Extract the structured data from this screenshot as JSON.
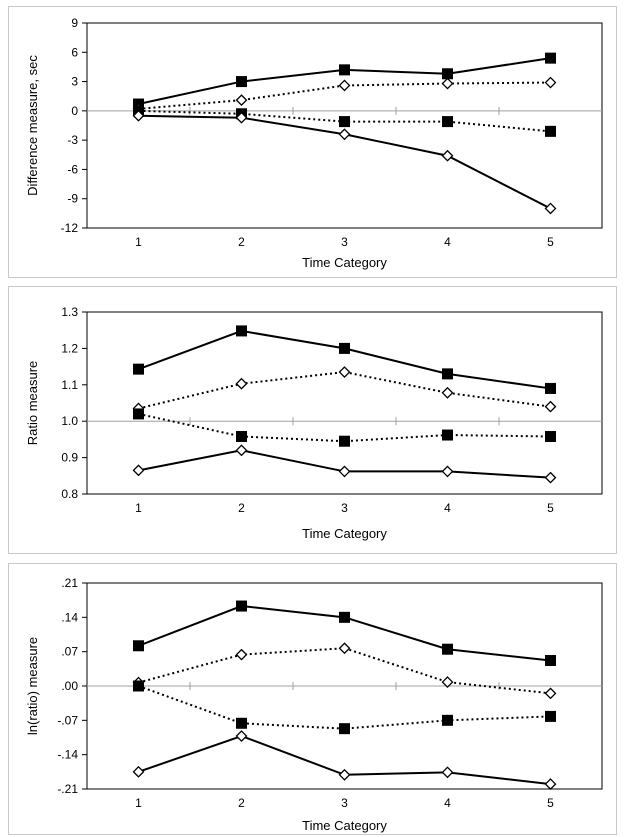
{
  "chart_data": [
    {
      "type": "line",
      "title": "",
      "xlabel": "Time Category",
      "ylabel": "Difference measure, sec",
      "categories": [
        "1",
        "2",
        "3",
        "4",
        "5"
      ],
      "ylim": [
        -12,
        9
      ],
      "yticks": [
        "9",
        "6",
        "3",
        "0",
        "-3",
        "-6",
        "-9",
        "-12"
      ],
      "ytick_values": [
        9,
        6,
        3,
        0,
        -3,
        -6,
        -9,
        -12
      ],
      "reference_line": 0,
      "series": [
        {
          "marker": "square",
          "line": "solid",
          "values": [
            0.7,
            3.0,
            4.2,
            3.8,
            5.4
          ]
        },
        {
          "marker": "diamond",
          "line": "dotted",
          "values": [
            0.2,
            1.1,
            2.6,
            2.8,
            2.9
          ]
        },
        {
          "marker": "square",
          "line": "dotted",
          "values": [
            0.0,
            -0.3,
            -1.1,
            -1.1,
            -2.1
          ]
        },
        {
          "marker": "diamond",
          "line": "solid",
          "values": [
            -0.5,
            -0.7,
            -2.4,
            -4.6,
            -10.0
          ]
        }
      ]
    },
    {
      "type": "line",
      "title": "",
      "xlabel": "Time Category",
      "ylabel": "Ratio measure",
      "categories": [
        "1",
        "2",
        "3",
        "4",
        "5"
      ],
      "ylim": [
        0.8,
        1.3
      ],
      "yticks": [
        "1.3",
        "1.2",
        "1.1",
        "1.0",
        "0.9",
        "0.8"
      ],
      "ytick_values": [
        1.3,
        1.2,
        1.1,
        1.0,
        0.9,
        0.8
      ],
      "reference_line": 1.0,
      "series": [
        {
          "marker": "square",
          "line": "solid",
          "values": [
            1.143,
            1.248,
            1.2,
            1.13,
            1.09
          ]
        },
        {
          "marker": "diamond",
          "line": "dotted",
          "values": [
            1.035,
            1.103,
            1.135,
            1.078,
            1.04
          ]
        },
        {
          "marker": "square",
          "line": "dotted",
          "values": [
            1.02,
            0.958,
            0.945,
            0.962,
            0.958
          ]
        },
        {
          "marker": "diamond",
          "line": "solid",
          "values": [
            0.865,
            0.92,
            0.862,
            0.862,
            0.845
          ]
        }
      ]
    },
    {
      "type": "line",
      "title": "",
      "xlabel": "Time Category",
      "ylabel": "ln(ratio) measure",
      "categories": [
        "1",
        "2",
        "3",
        "4",
        "5"
      ],
      "ylim": [
        -0.21,
        0.21
      ],
      "yticks": [
        ".21",
        ".14",
        ".07",
        ".00",
        "-.07",
        "-.14",
        "-.21"
      ],
      "ytick_values": [
        0.21,
        0.14,
        0.07,
        0.0,
        -0.07,
        -0.14,
        -0.21
      ],
      "reference_line": 0.0,
      "series": [
        {
          "marker": "square",
          "line": "solid",
          "values": [
            0.082,
            0.163,
            0.14,
            0.075,
            0.052
          ]
        },
        {
          "marker": "diamond",
          "line": "dotted",
          "values": [
            0.007,
            0.064,
            0.077,
            0.008,
            -0.015
          ]
        },
        {
          "marker": "square",
          "line": "dotted",
          "values": [
            0.0,
            -0.076,
            -0.087,
            -0.07,
            -0.062
          ]
        },
        {
          "marker": "diamond",
          "line": "solid",
          "values": [
            -0.175,
            -0.102,
            -0.181,
            -0.176,
            -0.2
          ]
        }
      ]
    }
  ]
}
